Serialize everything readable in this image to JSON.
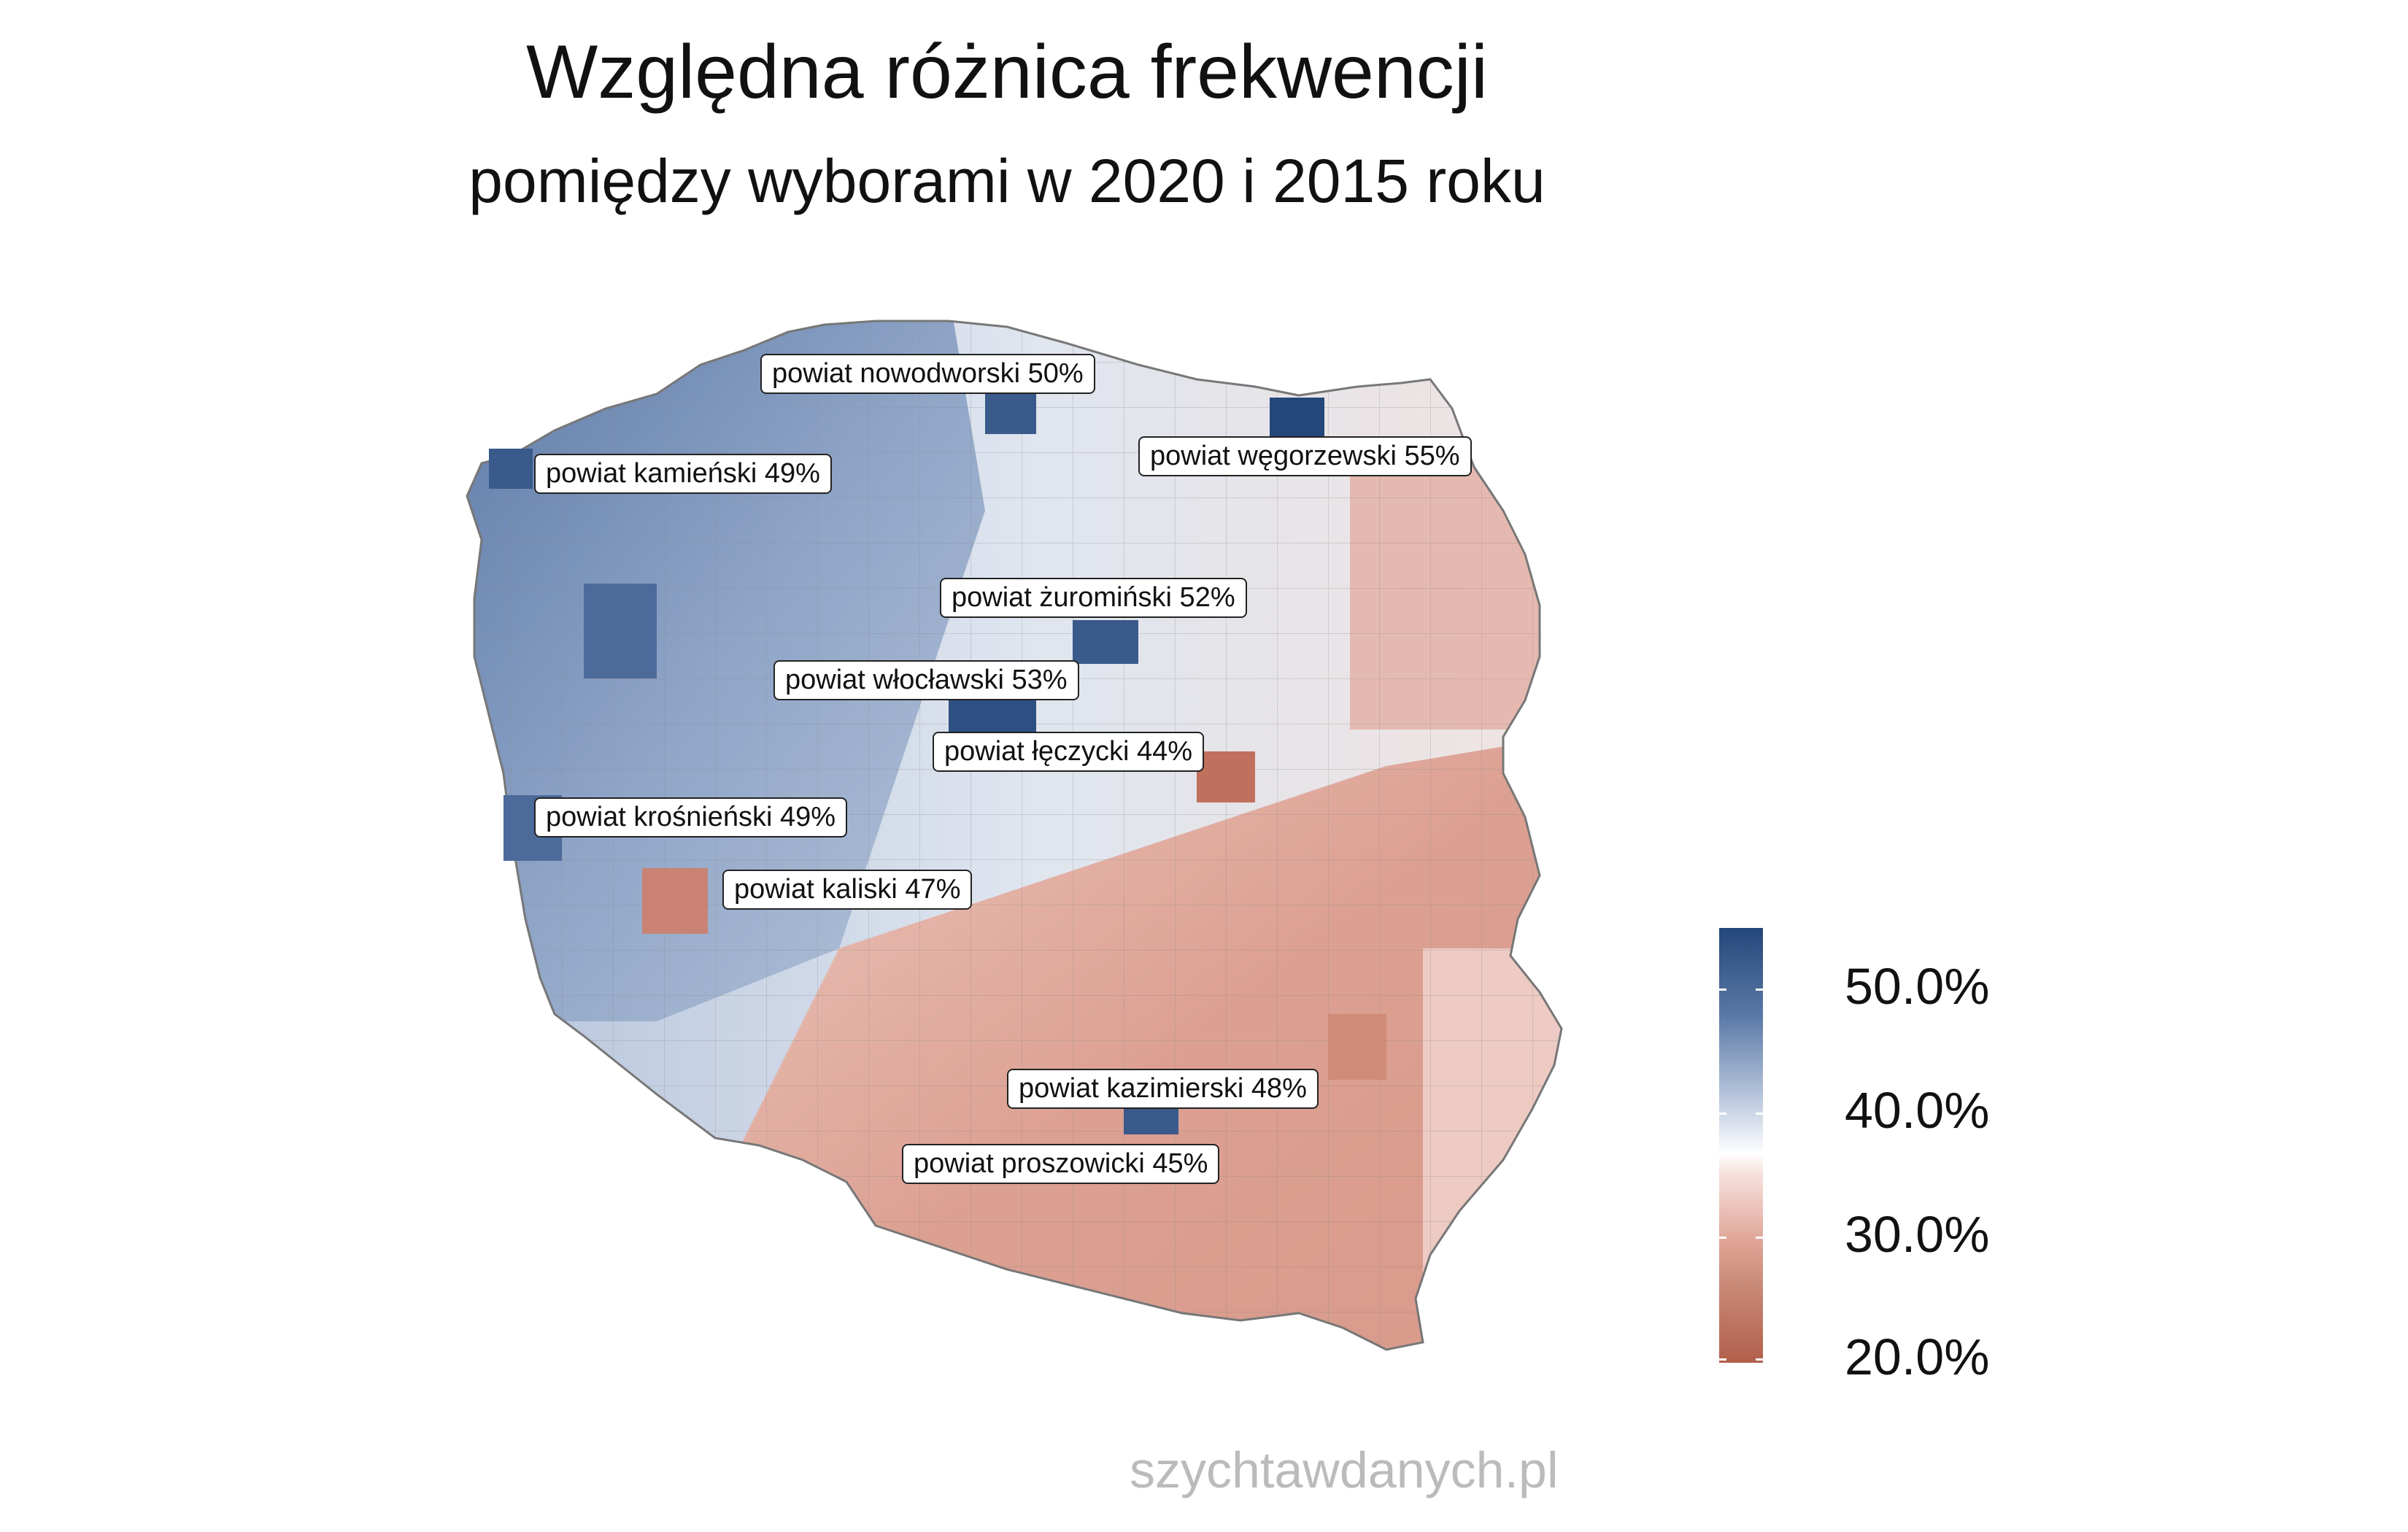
{
  "title": "Względna różnica frekwencji",
  "subtitle": "pomiędzy wyborami w 2020 i 2015 roku",
  "labels": [
    {
      "text": "powiat nowodworski 50%"
    },
    {
      "text": "powiat węgorzewski 55%"
    },
    {
      "text": "powiat kamieński 49%"
    },
    {
      "text": "powiat żuromiński 52%"
    },
    {
      "text": "powiat włocławski 53%"
    },
    {
      "text": "powiat łęczycki 44%"
    },
    {
      "text": "powiat krośnieński 49%"
    },
    {
      "text": "powiat kaliski 47%"
    },
    {
      "text": "powiat kazimierski 48%"
    },
    {
      "text": "powiat proszowicki 45%"
    }
  ],
  "legend": {
    "ticks": [
      "50.0%",
      "40.0%",
      "30.0%",
      "20.0%"
    ],
    "colors": {
      "high": "#24477a",
      "mid": "#ffffff",
      "low": "#b25f4a"
    }
  },
  "watermark": "szychtawdanych.pl"
}
